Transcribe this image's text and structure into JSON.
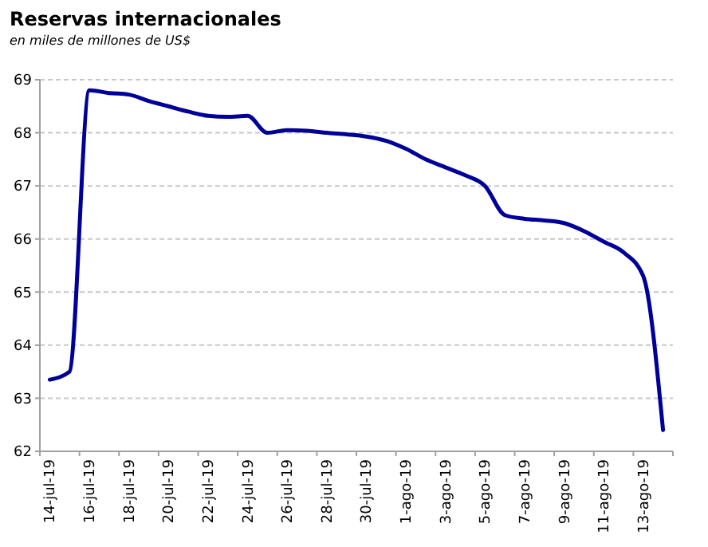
{
  "chart_data": {
    "type": "line",
    "title": "Reservas internacionales",
    "subtitle": "en miles de millones de US$",
    "categories": [
      "14-jul-19",
      null,
      "16-jul-19",
      null,
      "18-jul-19",
      null,
      "20-jul-19",
      null,
      "22-jul-19",
      null,
      "24-jul-19",
      null,
      "26-jul-19",
      null,
      "28-jul-19",
      null,
      "30-jul-19",
      null,
      "1-ago-19",
      null,
      "3-ago-19",
      null,
      "5-ago-19",
      null,
      "7-ago-19",
      null,
      "9-ago-19",
      null,
      "11-ago-19",
      null,
      "13-ago-19",
      null
    ],
    "series": [
      {
        "color": "#000099",
        "values": [
          63.35,
          63.5,
          68.8,
          68.75,
          68.72,
          68.6,
          68.5,
          68.4,
          68.32,
          68.3,
          68.32,
          68.0,
          68.05,
          68.04,
          68.0,
          67.97,
          67.93,
          67.85,
          67.7,
          67.5,
          67.35,
          67.2,
          67.0,
          66.45,
          66.38,
          66.35,
          66.3,
          66.15,
          65.95,
          65.75,
          65.3,
          62.4
        ]
      }
    ],
    "ylim": [
      62,
      69
    ],
    "yticks": [
      62,
      63,
      64,
      65,
      66,
      67,
      68,
      69
    ],
    "grid": "y",
    "marker": "none",
    "line_style": "solid"
  }
}
